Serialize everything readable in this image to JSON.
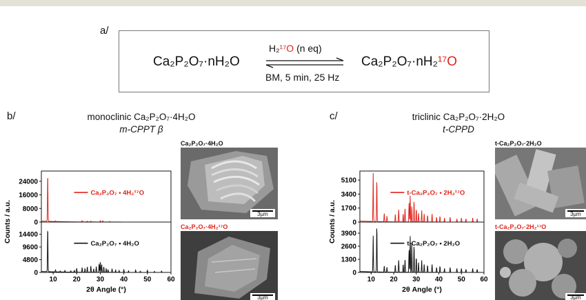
{
  "panels": {
    "a": "a/",
    "b": "b/",
    "c": "c/"
  },
  "scheme": {
    "reactant": "Ca₂P₂O₇·nH₂O",
    "product_main": "Ca₂P₂O₇·nH₂",
    "product_isotope": "¹⁷O",
    "reagent_main": "H₂",
    "reagent_isotope": "¹⁷O",
    "reagent_eq": "(n eq)",
    "conditions": "BM, 5 min, 25 Hz"
  },
  "b": {
    "title_line1": "monoclinic Ca₂P₂O₇·4H₂O",
    "title_line2": "m-CPPT β",
    "sem_top_caption": "Ca₂P₂O₇·4H₂O",
    "sem_bottom_caption": "Ca₂P₂O₇·4H₂¹⁷O",
    "scale_bar": "3µm"
  },
  "c": {
    "title_line1": "triclinic Ca₂P₂O₇·2H₂O",
    "title_line2": "t-CPPD",
    "sem_top_caption": "t-Ca₂P₂O₇·2H₂O",
    "sem_bottom_caption": "t-Ca₂P₂O₇·2H₂¹⁷O",
    "scale_bar": "3µm"
  },
  "colors": {
    "red": "#e0241b",
    "black": "#111111"
  },
  "chart_data": [
    {
      "type": "line",
      "xlabel": "2θ Angle (°)",
      "ylabel": "Counts / a.u.",
      "xlim": [
        5,
        60
      ],
      "xticks": [
        10,
        20,
        30,
        40,
        50,
        60
      ],
      "subplots": [
        {
          "ylim": [
            0,
            30000
          ],
          "yticks": [
            0,
            8000,
            16000,
            24000
          ],
          "legend": "Ca₂P₂O₇ • 4H₂¹⁷O",
          "color": "#e0241b",
          "peaks": [
            [
              7.7,
              28500
            ],
            [
              11.0,
              400
            ],
            [
              22.3,
              700
            ],
            [
              24.5,
              500
            ],
            [
              26.0,
              500
            ],
            [
              30.0,
              800
            ],
            [
              31.0,
              700
            ],
            [
              34.0,
              400
            ]
          ]
        },
        {
          "ylim": [
            0,
            19000
          ],
          "yticks": [
            0,
            4800,
            9600,
            14400
          ],
          "legend": "Ca₂P₂O₇ • 4H₂O",
          "color": "#111111",
          "peaks": [
            [
              7.7,
              17000
            ],
            [
              11.0,
              700
            ],
            [
              13.0,
              400
            ],
            [
              15.0,
              600
            ],
            [
              17.5,
              500
            ],
            [
              19.0,
              700
            ],
            [
              20.0,
              1500
            ],
            [
              22.3,
              1800
            ],
            [
              23.5,
              1400
            ],
            [
              24.5,
              2100
            ],
            [
              26.0,
              2400
            ],
            [
              27.2,
              1300
            ],
            [
              28.3,
              2200
            ],
            [
              29.5,
              3200
            ],
            [
              30.0,
              4200
            ],
            [
              30.6,
              3100
            ],
            [
              31.5,
              2100
            ],
            [
              32.5,
              1500
            ],
            [
              33.3,
              1100
            ],
            [
              35.0,
              1400
            ],
            [
              36.5,
              900
            ],
            [
              38.0,
              700
            ],
            [
              40.0,
              1100
            ],
            [
              42.0,
              600
            ],
            [
              45.0,
              900
            ],
            [
              47.0,
              500
            ],
            [
              50.0,
              800
            ],
            [
              53.0,
              400
            ],
            [
              56.0,
              500
            ]
          ]
        }
      ]
    },
    {
      "type": "line",
      "xlabel": "2θ Angle (°)",
      "ylabel": "Counts / a.u.",
      "xlim": [
        5,
        60
      ],
      "xticks": [
        10,
        20,
        30,
        40,
        50,
        60
      ],
      "subplots": [
        {
          "ylim": [
            0,
            6200
          ],
          "yticks": [
            0,
            1700,
            3400,
            5100
          ],
          "legend": "t-Ca₂P₂O₇ • 2H₂¹⁷O",
          "color": "#e0241b",
          "peaks": [
            [
              10.9,
              5900
            ],
            [
              12.5,
              5100
            ],
            [
              15.8,
              1000
            ],
            [
              17.0,
              700
            ],
            [
              20.7,
              900
            ],
            [
              22.2,
              1500
            ],
            [
              24.2,
              1000
            ],
            [
              25.0,
              1700
            ],
            [
              26.8,
              2300
            ],
            [
              27.3,
              3200
            ],
            [
              28.0,
              1900
            ],
            [
              29.0,
              2600
            ],
            [
              30.0,
              1600
            ],
            [
              31.0,
              1100
            ],
            [
              32.4,
              1400
            ],
            [
              33.5,
              1000
            ],
            [
              35.0,
              800
            ],
            [
              37.0,
              1000
            ],
            [
              39.0,
              600
            ],
            [
              40.5,
              700
            ],
            [
              42.5,
              500
            ],
            [
              45.0,
              600
            ],
            [
              48.0,
              400
            ],
            [
              50.0,
              500
            ],
            [
              52.0,
              400
            ],
            [
              55.0,
              500
            ],
            [
              57.0,
              400
            ]
          ]
        },
        {
          "ylim": [
            0,
            5000
          ],
          "yticks": [
            0,
            1300,
            2600,
            3900
          ],
          "legend": "t-Ca₂P₂O₇ • 2H₂O",
          "color": "#111111",
          "peaks": [
            [
              10.9,
              3600
            ],
            [
              12.5,
              4600
            ],
            [
              15.8,
              600
            ],
            [
              17.0,
              500
            ],
            [
              20.7,
              700
            ],
            [
              22.2,
              1200
            ],
            [
              24.2,
              800
            ],
            [
              25.0,
              1300
            ],
            [
              26.8,
              2200
            ],
            [
              27.3,
              3600
            ],
            [
              28.0,
              3000
            ],
            [
              29.0,
              2700
            ],
            [
              30.0,
              1500
            ],
            [
              31.0,
              1000
            ],
            [
              32.4,
              1200
            ],
            [
              33.5,
              800
            ],
            [
              35.0,
              700
            ],
            [
              37.0,
              800
            ],
            [
              39.0,
              500
            ],
            [
              40.5,
              600
            ],
            [
              42.5,
              400
            ],
            [
              45.0,
              500
            ],
            [
              48.0,
              400
            ],
            [
              50.0,
              400
            ],
            [
              52.0,
              300
            ],
            [
              55.0,
              400
            ],
            [
              57.0,
              300
            ]
          ]
        }
      ]
    }
  ]
}
